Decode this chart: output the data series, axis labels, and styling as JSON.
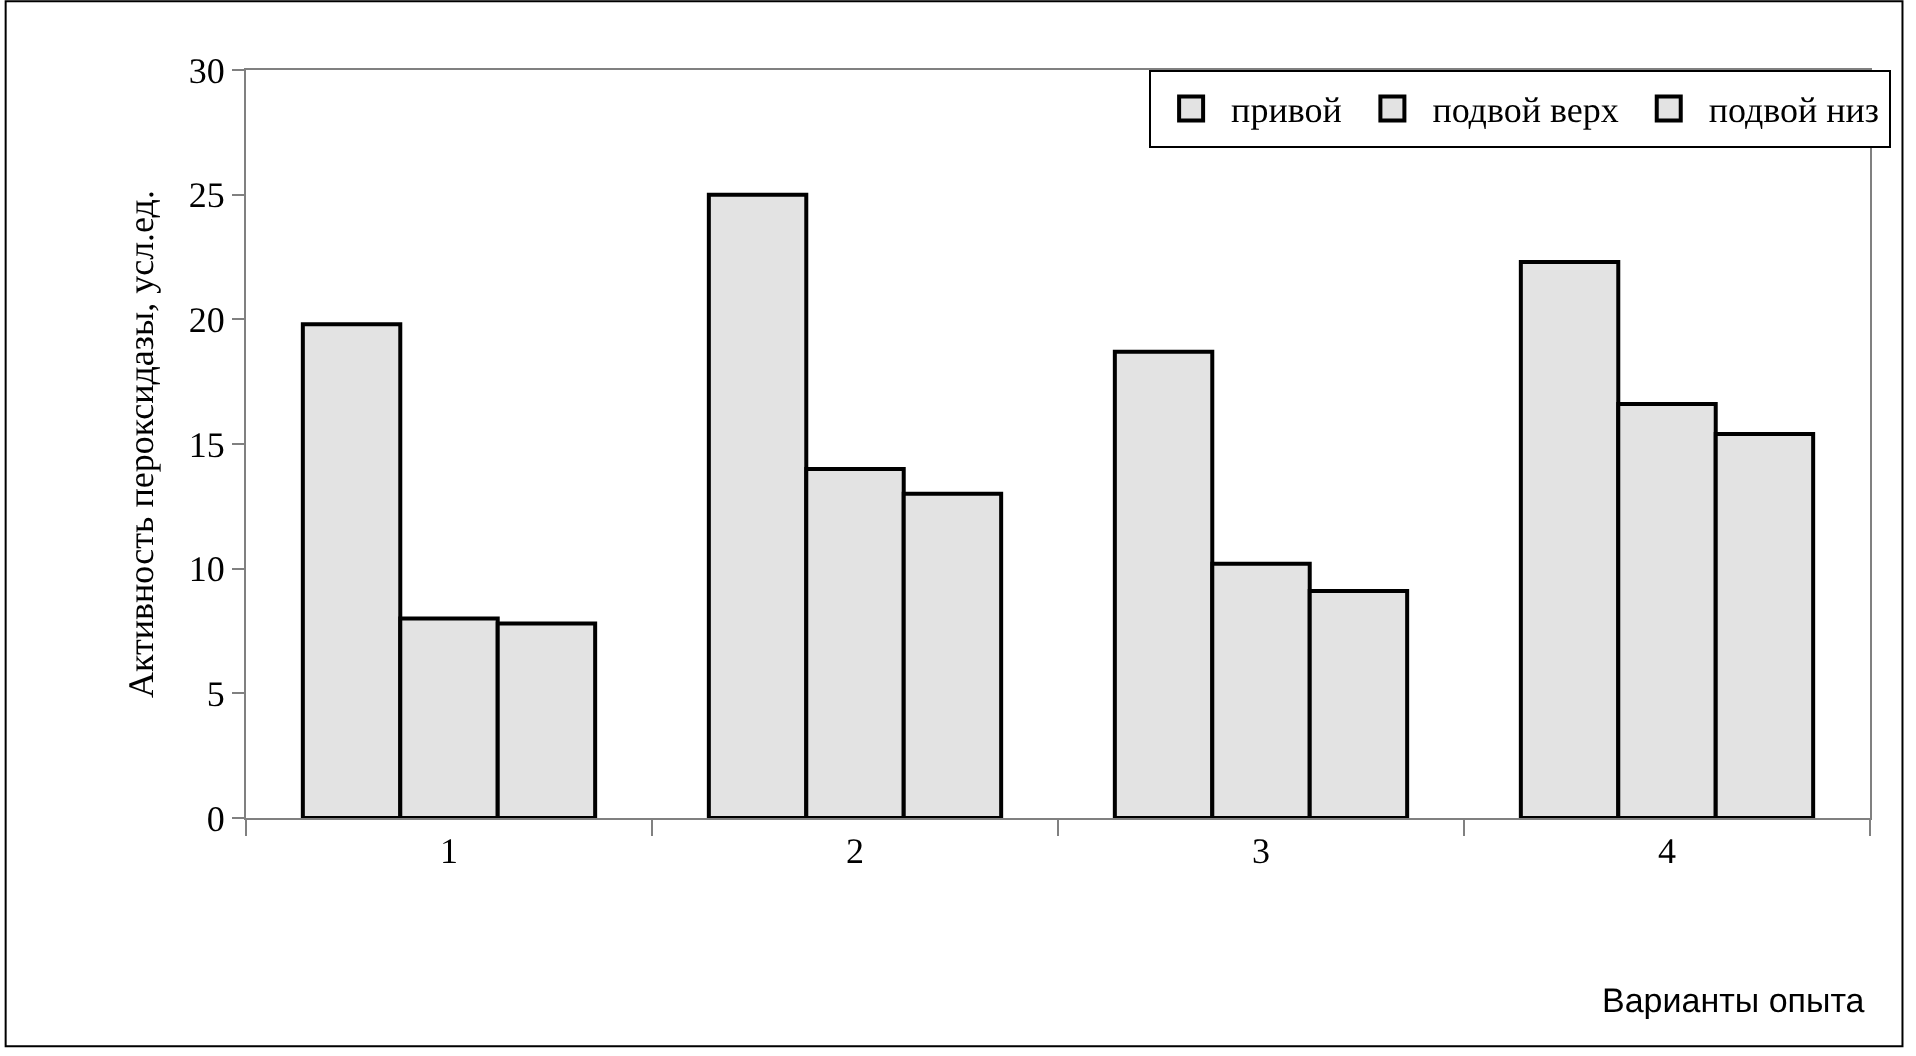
{
  "chart_data": {
    "type": "bar",
    "categories": [
      "1",
      "2",
      "3",
      "4"
    ],
    "series": [
      {
        "name": "привой",
        "color": "#e3e3e3",
        "values": [
          19.8,
          25.0,
          18.7,
          22.3
        ]
      },
      {
        "name": "подвой верх",
        "color": "#e3e3e3",
        "values": [
          8.0,
          14.0,
          10.2,
          16.6
        ]
      },
      {
        "name": "подвой низ",
        "color": "#e3e3e3",
        "values": [
          7.8,
          13.0,
          9.1,
          15.4
        ]
      }
    ],
    "ylabel": "Активность пероксидазы, усл.ед.",
    "xlabel": "Варианты опыта",
    "ylim": [
      0,
      30
    ],
    "yticks": [
      0,
      5,
      10,
      15,
      20,
      25,
      30
    ],
    "legend": "top right"
  }
}
